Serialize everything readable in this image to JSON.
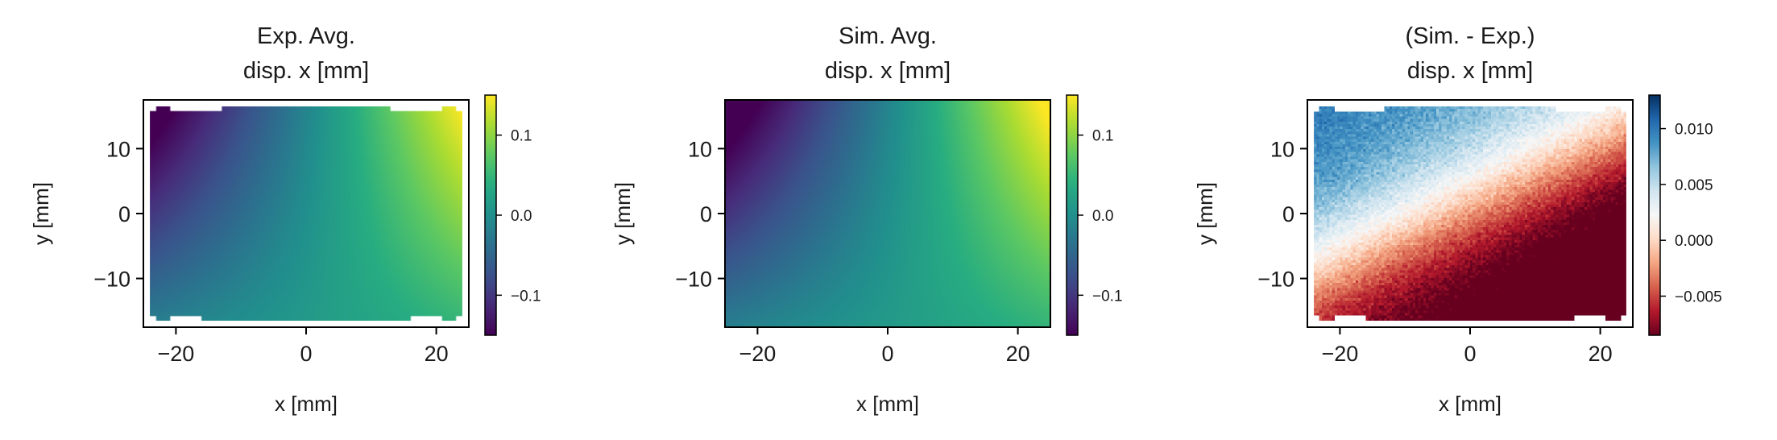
{
  "chart_data": [
    {
      "type": "heatmap",
      "title_line1": "Exp. Avg.",
      "title_line2": "disp. x [mm]",
      "xlabel": "x [mm]",
      "ylabel": "y [mm]",
      "xlim": [
        -25,
        25
      ],
      "ylim": [
        -17.5,
        17.5
      ],
      "xticks": [
        -20,
        0,
        20
      ],
      "xticklabels": [
        "−20",
        "0",
        "20"
      ],
      "yticks": [
        -10,
        0,
        10
      ],
      "yticklabels": [
        "−10",
        "0",
        "10"
      ],
      "data_extent": {
        "x": [
          -24,
          24
        ],
        "y": [
          -16.5,
          16.5
        ]
      },
      "colormap": "viridis",
      "colorbar": {
        "range": [
          -0.15,
          0.15
        ],
        "ticks": [
          -0.1,
          0.0,
          0.1
        ],
        "ticklabels": [
          "−0.1",
          "0.0",
          "0.1"
        ]
      },
      "field": "smooth_gradient",
      "noise": 0,
      "corner_notches": true
    },
    {
      "type": "heatmap",
      "title_line1": "Sim. Avg.",
      "title_line2": "disp. x [mm]",
      "xlabel": "x [mm]",
      "ylabel": "y [mm]",
      "xlim": [
        -25,
        25
      ],
      "ylim": [
        -17.5,
        17.5
      ],
      "xticks": [
        -20,
        0,
        20
      ],
      "xticklabels": [
        "−20",
        "0",
        "20"
      ],
      "yticks": [
        -10,
        0,
        10
      ],
      "yticklabels": [
        "−10",
        "0",
        "10"
      ],
      "data_extent": {
        "x": [
          -25,
          25
        ],
        "y": [
          -17.5,
          17.5
        ]
      },
      "colormap": "viridis",
      "colorbar": {
        "range": [
          -0.15,
          0.15
        ],
        "ticks": [
          -0.1,
          0.0,
          0.1
        ],
        "ticklabels": [
          "−0.1",
          "0.0",
          "0.1"
        ]
      },
      "field": "smooth_gradient",
      "noise": 0,
      "corner_notches": false
    },
    {
      "type": "heatmap",
      "title_line1": "(Sim. - Exp.)",
      "title_line2": "disp. x [mm]",
      "xlabel": "x [mm]",
      "ylabel": "y [mm]",
      "xlim": [
        -25,
        25
      ],
      "ylim": [
        -17.5,
        17.5
      ],
      "xticks": [
        -20,
        0,
        20
      ],
      "xticklabels": [
        "−20",
        "0",
        "20"
      ],
      "yticks": [
        -10,
        0,
        10
      ],
      "yticklabels": [
        "−10",
        "0",
        "10"
      ],
      "data_extent": {
        "x": [
          -24,
          24
        ],
        "y": [
          -16.5,
          16.5
        ]
      },
      "colormap": "RdBu",
      "colorbar": {
        "range": [
          -0.0085,
          0.013
        ],
        "ticks": [
          -0.005,
          0.0,
          0.005,
          0.01
        ],
        "ticklabels": [
          "−0.005",
          "0.000",
          "0.005",
          "0.010"
        ]
      },
      "field": "difference_noisy",
      "noise": 0.0012,
      "corner_notches": true
    }
  ]
}
